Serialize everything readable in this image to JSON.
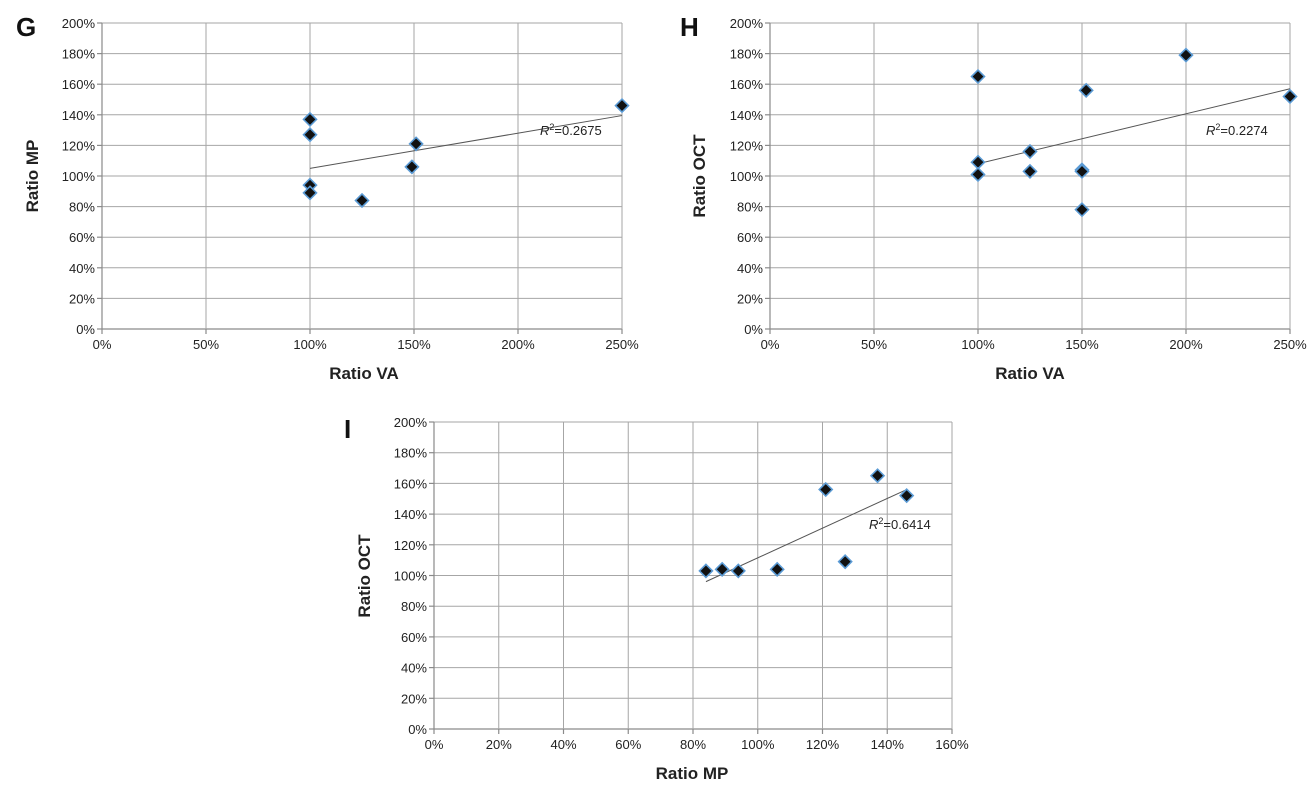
{
  "chart_data": [
    {
      "type": "scatter",
      "panel": "G",
      "xlabel": "Ratio VA",
      "ylabel": "Ratio MP",
      "xlim": [
        0,
        250
      ],
      "ylim": [
        0,
        200
      ],
      "xticks": [
        "0%",
        "50%",
        "100%",
        "150%",
        "200%",
        "250%"
      ],
      "yticks": [
        "0%",
        "20%",
        "40%",
        "60%",
        "80%",
        "100%",
        "120%",
        "140%",
        "160%",
        "180%",
        "200%"
      ],
      "grid": true,
      "points": [
        {
          "x": 100,
          "y": 137
        },
        {
          "x": 100,
          "y": 127
        },
        {
          "x": 100,
          "y": 94
        },
        {
          "x": 100,
          "y": 89
        },
        {
          "x": 125,
          "y": 84
        },
        {
          "x": 149,
          "y": 106
        },
        {
          "x": 151,
          "y": 121
        },
        {
          "x": 250,
          "y": 146
        }
      ],
      "trendline": {
        "x": [
          100,
          250
        ],
        "y": [
          105,
          139.5
        ]
      },
      "r2_prefix": "R",
      "r2_sup": "2",
      "r2_value": "=0.2675"
    },
    {
      "type": "scatter",
      "panel": "H",
      "xlabel": "Ratio VA",
      "ylabel": "Ratio OCT",
      "xlim": [
        0,
        250
      ],
      "ylim": [
        0,
        200
      ],
      "xticks": [
        "0%",
        "50%",
        "100%",
        "150%",
        "200%",
        "250%"
      ],
      "yticks": [
        "0%",
        "20%",
        "40%",
        "60%",
        "80%",
        "100%",
        "120%",
        "140%",
        "160%",
        "180%",
        "200%"
      ],
      "grid": true,
      "points": [
        {
          "x": 100,
          "y": 165
        },
        {
          "x": 100,
          "y": 109
        },
        {
          "x": 100,
          "y": 101
        },
        {
          "x": 125,
          "y": 116
        },
        {
          "x": 125,
          "y": 103
        },
        {
          "x": 150,
          "y": 104
        },
        {
          "x": 150,
          "y": 103
        },
        {
          "x": 150,
          "y": 78
        },
        {
          "x": 152,
          "y": 156
        },
        {
          "x": 200,
          "y": 179
        },
        {
          "x": 250,
          "y": 152
        }
      ],
      "trendline": {
        "x": [
          100,
          250
        ],
        "y": [
          108,
          157
        ]
      },
      "r2_prefix": "R",
      "r2_sup": "2",
      "r2_value": "=0.2274"
    },
    {
      "type": "scatter",
      "panel": "I",
      "xlabel": "Ratio MP",
      "ylabel": "Ratio OCT",
      "xlim": [
        0,
        160
      ],
      "ylim": [
        0,
        200
      ],
      "xticks": [
        "0%",
        "20%",
        "40%",
        "60%",
        "80%",
        "100%",
        "120%",
        "140%",
        "160%"
      ],
      "yticks": [
        "0%",
        "20%",
        "40%",
        "60%",
        "80%",
        "100%",
        "120%",
        "140%",
        "160%",
        "180%",
        "200%"
      ],
      "grid": true,
      "points": [
        {
          "x": 84,
          "y": 103
        },
        {
          "x": 89,
          "y": 104
        },
        {
          "x": 94,
          "y": 103
        },
        {
          "x": 106,
          "y": 104
        },
        {
          "x": 121,
          "y": 156
        },
        {
          "x": 127,
          "y": 109
        },
        {
          "x": 137,
          "y": 165
        },
        {
          "x": 146,
          "y": 152
        }
      ],
      "trendline": {
        "x": [
          84,
          146
        ],
        "y": [
          96,
          156
        ]
      },
      "r2_prefix": "R",
      "r2_sup": "2",
      "r2_value": "=0.6414"
    }
  ]
}
